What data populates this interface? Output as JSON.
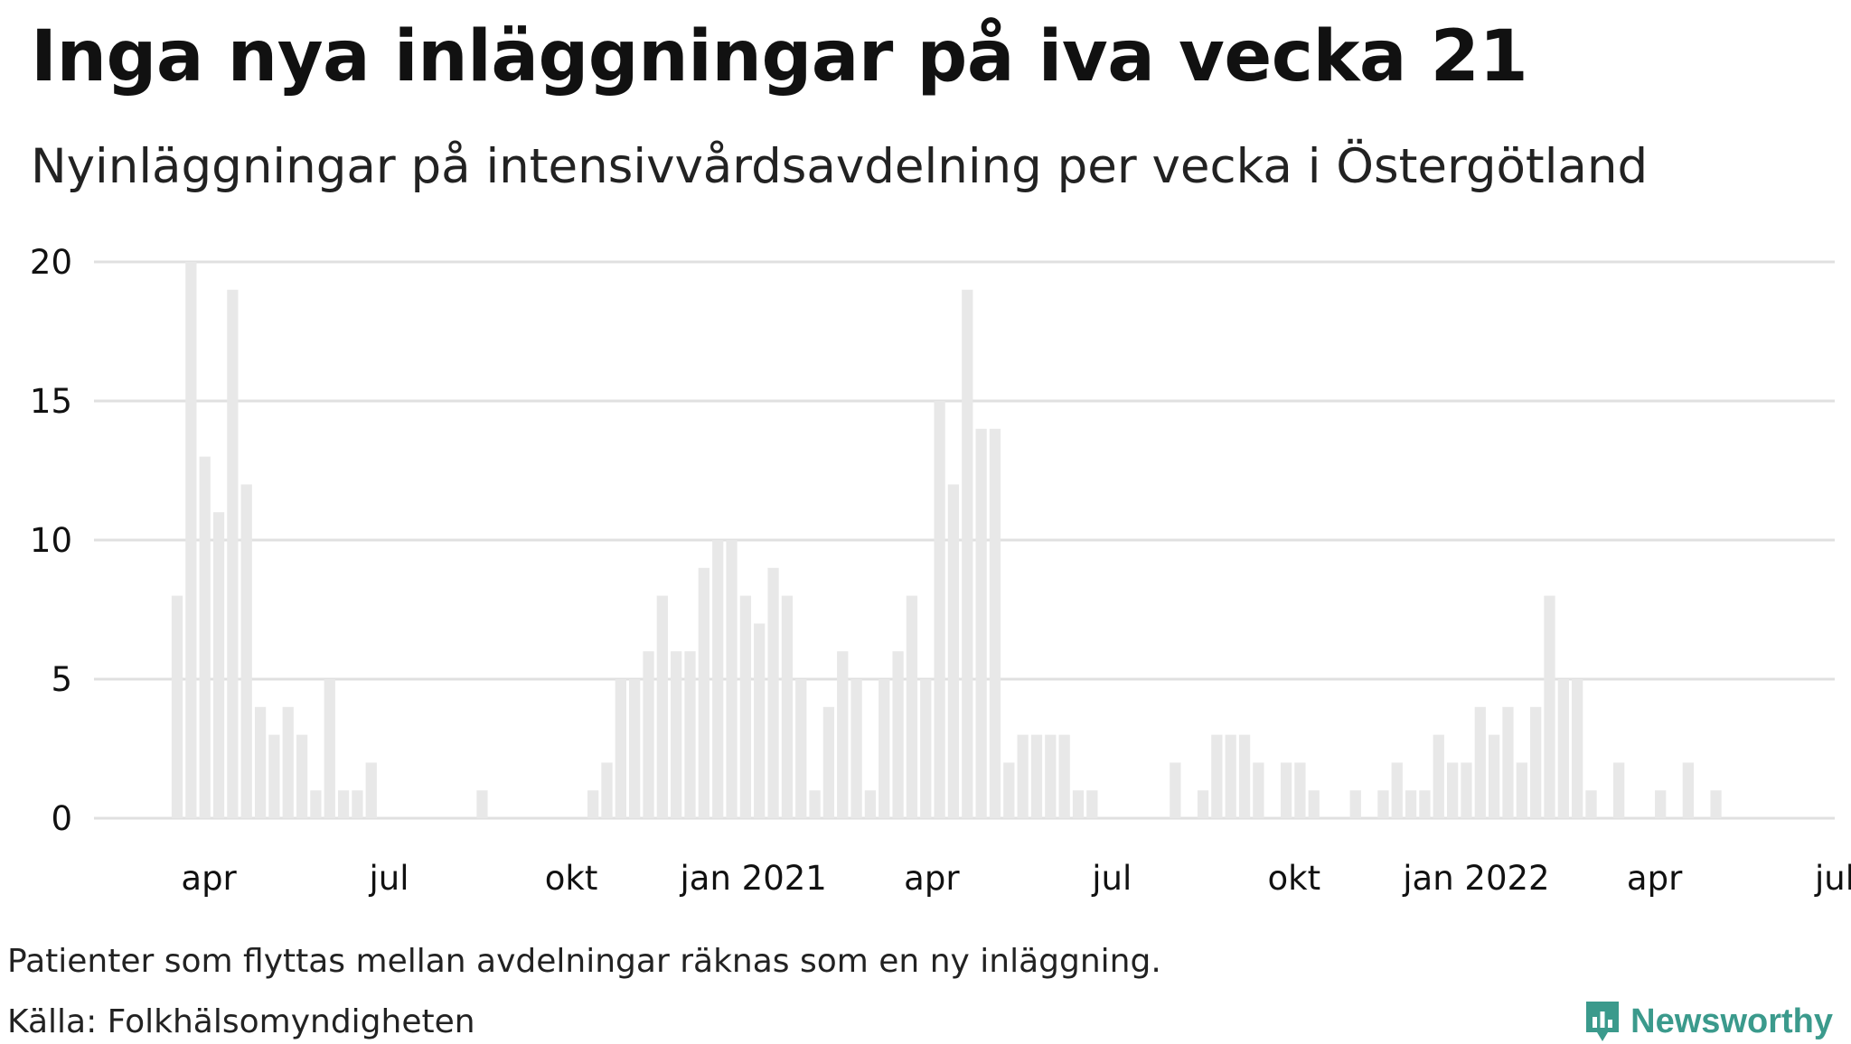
{
  "title": "Inga nya inläggningar på iva vecka 21",
  "subtitle": "Nyinläggningar på intensivvårdsavdelning per vecka i Östergötland",
  "footnote": "Patienter som flyttas mellan avdelningar räknas som en ny inläggning.",
  "source": "Källa: Folkhälsomyndigheten",
  "brand": {
    "name": "Newsworthy",
    "color": "#3b9a8c",
    "icon": "newsworthy-logo-icon"
  },
  "colors": {
    "bar": "#e8e8e8",
    "grid": "#e0e0e0",
    "text": "#111111"
  },
  "chart_data": {
    "type": "bar",
    "title": "Inga nya inläggningar på iva vecka 21",
    "subtitle": "Nyinläggningar på intensivvårdsavdelning per vecka i Östergötland",
    "xlabel": "",
    "ylabel": "",
    "ylim": [
      0,
      20
    ],
    "yticks": [
      0,
      5,
      10,
      15,
      20
    ],
    "grid": true,
    "x_start": "2020-02-03",
    "x_end": "2022-07-01",
    "xticks": [
      {
        "date": "2020-04-01",
        "label": "apr"
      },
      {
        "date": "2020-07-01",
        "label": "jul"
      },
      {
        "date": "2020-10-01",
        "label": "okt"
      },
      {
        "date": "2021-01-01",
        "label": "jan 2021"
      },
      {
        "date": "2021-04-01",
        "label": "apr"
      },
      {
        "date": "2021-07-01",
        "label": "jul"
      },
      {
        "date": "2021-10-01",
        "label": "okt"
      },
      {
        "date": "2022-01-01",
        "label": "jan 2022"
      },
      {
        "date": "2022-04-01",
        "label": "apr"
      },
      {
        "date": "2022-07-01",
        "label": "jul"
      }
    ],
    "weeks": [
      "2020-03-16",
      "2020-03-23",
      "2020-03-30",
      "2020-04-06",
      "2020-04-13",
      "2020-04-20",
      "2020-04-27",
      "2020-05-04",
      "2020-05-11",
      "2020-05-18",
      "2020-05-25",
      "2020-06-01",
      "2020-06-08",
      "2020-06-15",
      "2020-06-22",
      "2020-06-29",
      "2020-07-06",
      "2020-07-13",
      "2020-07-20",
      "2020-07-27",
      "2020-08-03",
      "2020-08-10",
      "2020-08-17",
      "2020-08-24",
      "2020-08-31",
      "2020-09-07",
      "2020-09-14",
      "2020-09-21",
      "2020-09-28",
      "2020-10-05",
      "2020-10-12",
      "2020-10-19",
      "2020-10-26",
      "2020-11-02",
      "2020-11-09",
      "2020-11-16",
      "2020-11-23",
      "2020-11-30",
      "2020-12-07",
      "2020-12-14",
      "2020-12-21",
      "2020-12-28",
      "2021-01-04",
      "2021-01-11",
      "2021-01-18",
      "2021-01-25",
      "2021-02-01",
      "2021-02-08",
      "2021-02-15",
      "2021-02-22",
      "2021-03-01",
      "2021-03-08",
      "2021-03-15",
      "2021-03-22",
      "2021-03-29",
      "2021-04-05",
      "2021-04-12",
      "2021-04-19",
      "2021-04-26",
      "2021-05-03",
      "2021-05-10",
      "2021-05-17",
      "2021-05-24",
      "2021-05-31",
      "2021-06-07",
      "2021-06-14",
      "2021-06-21",
      "2021-06-28",
      "2021-07-05",
      "2021-07-12",
      "2021-07-19",
      "2021-07-26",
      "2021-08-02",
      "2021-08-09",
      "2021-08-16",
      "2021-08-23",
      "2021-08-30",
      "2021-09-06",
      "2021-09-13",
      "2021-09-20",
      "2021-09-27",
      "2021-10-04",
      "2021-10-11",
      "2021-10-18",
      "2021-10-25",
      "2021-11-01",
      "2021-11-08",
      "2021-11-15",
      "2021-11-22",
      "2021-11-29",
      "2021-12-06",
      "2021-12-13",
      "2021-12-20",
      "2021-12-27",
      "2022-01-03",
      "2022-01-10",
      "2022-01-17",
      "2022-01-24",
      "2022-01-31",
      "2022-02-07",
      "2022-02-14",
      "2022-02-21",
      "2022-02-28",
      "2022-03-07",
      "2022-03-14",
      "2022-03-21",
      "2022-03-28",
      "2022-04-04",
      "2022-04-11",
      "2022-04-18",
      "2022-04-25",
      "2022-05-02",
      "2022-05-09",
      "2022-05-16",
      "2022-05-23"
    ],
    "values": [
      8,
      20,
      13,
      11,
      19,
      12,
      4,
      3,
      4,
      3,
      1,
      5,
      1,
      1,
      2,
      0,
      0,
      0,
      0,
      0,
      0,
      0,
      1,
      0,
      0,
      0,
      0,
      0,
      0,
      0,
      1,
      2,
      5,
      5,
      6,
      8,
      6,
      6,
      9,
      10,
      10,
      8,
      7,
      9,
      8,
      5,
      1,
      4,
      6,
      5,
      1,
      5,
      6,
      8,
      5,
      15,
      12,
      19,
      14,
      14,
      2,
      3,
      3,
      3,
      3,
      1,
      1,
      0,
      0,
      0,
      0,
      0,
      2,
      0,
      1,
      3,
      3,
      3,
      2,
      0,
      2,
      2,
      1,
      0,
      0,
      1,
      0,
      1,
      2,
      1,
      1,
      3,
      2,
      2,
      4,
      3,
      4,
      2,
      4,
      8,
      5,
      5,
      1,
      0,
      2,
      0,
      0,
      1,
      0,
      2,
      0,
      1,
      0,
      0,
      0
    ]
  }
}
